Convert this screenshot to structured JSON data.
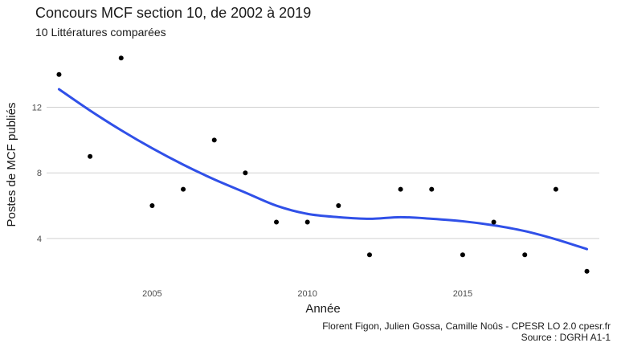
{
  "chart_data": {
    "type": "scatter",
    "title": "Concours MCF section 10, de 2002 à 2019",
    "subtitle": "10 Littératures comparées",
    "xlabel": "Année",
    "ylabel": "Postes de MCF publiés",
    "caption_lines": [
      "Florent Figon, Julien Gossa, Camille Noûs - CPESR LO 2.0 cpesr.fr",
      "Source : DGRH A1-1"
    ],
    "xlim": [
      2001.6,
      2019.4
    ],
    "ylim": [
      1.3,
      15.7
    ],
    "x_ticks": [
      2005,
      2010,
      2015
    ],
    "y_ticks": [
      4,
      8,
      12
    ],
    "grid": "horizontal",
    "series": [
      {
        "x": [
          2002,
          2003,
          2004,
          2005,
          2006,
          2007,
          2008,
          2009,
          2010,
          2011,
          2012,
          2013,
          2014,
          2015,
          2016,
          2017,
          2018,
          2019
        ],
        "y": [
          14,
          9,
          15,
          6,
          7,
          10,
          8,
          5,
          5,
          6,
          3,
          7,
          7,
          3,
          5,
          3,
          7,
          2
        ]
      }
    ],
    "smooth_line": {
      "color": "#3050e8",
      "x": [
        2002,
        2003,
        2004,
        2005,
        2006,
        2007,
        2008,
        2009,
        2010,
        2011,
        2012,
        2013,
        2014,
        2015,
        2016,
        2017,
        2018,
        2019
      ],
      "y": [
        13.1,
        11.8,
        10.6,
        9.5,
        8.5,
        7.6,
        6.8,
        6.0,
        5.5,
        5.3,
        5.2,
        5.3,
        5.2,
        5.05,
        4.8,
        4.45,
        3.95,
        3.35
      ]
    }
  }
}
